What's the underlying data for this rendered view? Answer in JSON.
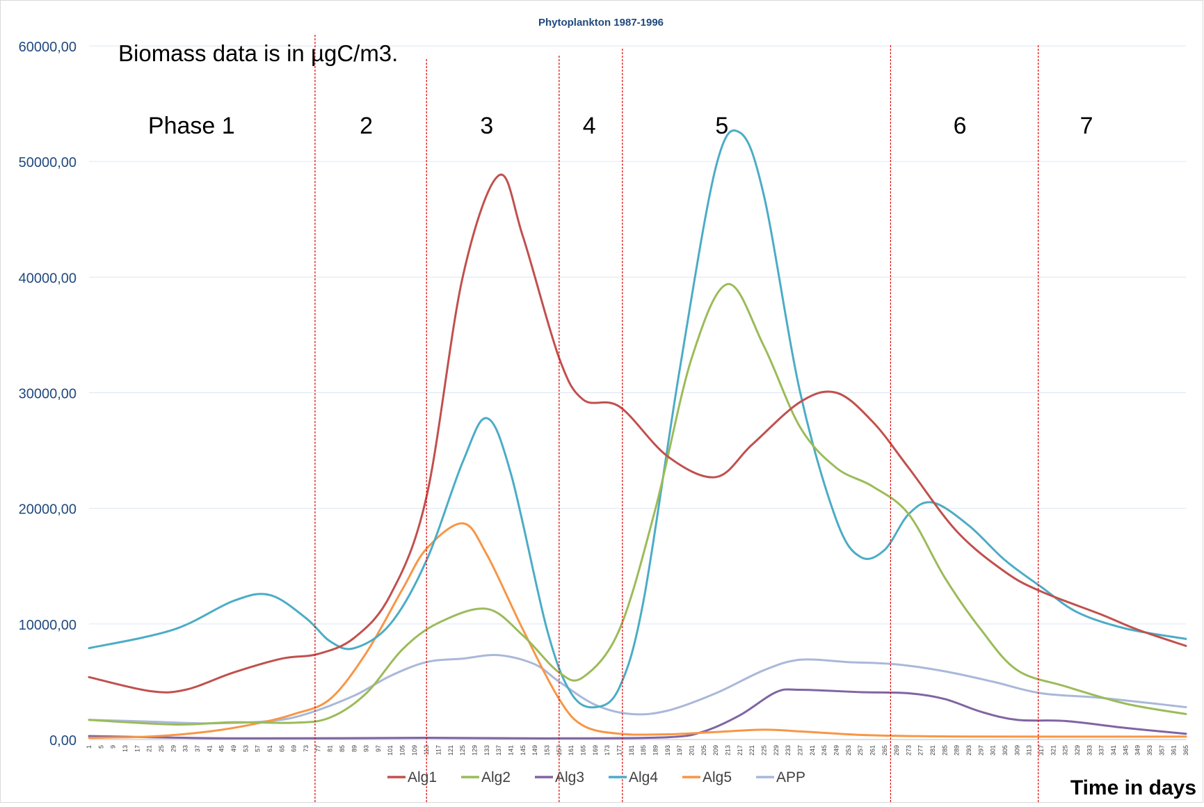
{
  "chart_data": {
    "type": "line",
    "title": "Phytoplankton 1987-1996",
    "note": "Biomass data is in µgC/m3.",
    "xlabel": "Time in days",
    "ylabel": "",
    "ylim": [
      0,
      60000
    ],
    "xlim": [
      1,
      365
    ],
    "y_ticks": [
      0,
      10000,
      20000,
      30000,
      40000,
      50000,
      60000
    ],
    "y_tick_labels": [
      "0,00",
      "10000,00",
      "20000,00",
      "30000,00",
      "40000,00",
      "50000,00",
      "60000,00"
    ],
    "x_tick_start": 1,
    "x_tick_step": 4,
    "grid": true,
    "legend_position": "bottom",
    "phase_boundaries": [
      76,
      113,
      157,
      178,
      267,
      316
    ],
    "phase_labels": [
      {
        "label": "Phase 1",
        "day": 35
      },
      {
        "label": "2",
        "day": 93
      },
      {
        "label": "3",
        "day": 133
      },
      {
        "label": "4",
        "day": 167
      },
      {
        "label": "5",
        "day": 211
      },
      {
        "label": "6",
        "day": 290
      },
      {
        "label": "7",
        "day": 332
      }
    ],
    "series": [
      {
        "name": "Alg1",
        "color": "#c0504d",
        "points": [
          [
            1,
            5400
          ],
          [
            21,
            4200
          ],
          [
            33,
            4300
          ],
          [
            49,
            5800
          ],
          [
            65,
            7000
          ],
          [
            77,
            7400
          ],
          [
            89,
            8800
          ],
          [
            101,
            12500
          ],
          [
            113,
            21000
          ],
          [
            125,
            40000
          ],
          [
            137,
            48800
          ],
          [
            145,
            43500
          ],
          [
            157,
            33000
          ],
          [
            165,
            29400
          ],
          [
            177,
            28800
          ],
          [
            193,
            24500
          ],
          [
            209,
            22700
          ],
          [
            221,
            25500
          ],
          [
            237,
            29200
          ],
          [
            249,
            30000
          ],
          [
            261,
            27500
          ],
          [
            273,
            23500
          ],
          [
            289,
            18000
          ],
          [
            305,
            14500
          ],
          [
            317,
            12800
          ],
          [
            337,
            10800
          ],
          [
            349,
            9500
          ],
          [
            365,
            8100
          ]
        ]
      },
      {
        "name": "Alg2",
        "color": "#9bbb59",
        "points": [
          [
            1,
            1700
          ],
          [
            29,
            1300
          ],
          [
            49,
            1500
          ],
          [
            69,
            1450
          ],
          [
            81,
            1900
          ],
          [
            93,
            4000
          ],
          [
            105,
            7800
          ],
          [
            117,
            10100
          ],
          [
            133,
            11300
          ],
          [
            145,
            9000
          ],
          [
            157,
            5800
          ],
          [
            165,
            5400
          ],
          [
            177,
            9500
          ],
          [
            189,
            20000
          ],
          [
            201,
            33000
          ],
          [
            213,
            39400
          ],
          [
            225,
            34000
          ],
          [
            237,
            27000
          ],
          [
            249,
            23500
          ],
          [
            261,
            21900
          ],
          [
            273,
            19500
          ],
          [
            285,
            14000
          ],
          [
            297,
            9500
          ],
          [
            309,
            6000
          ],
          [
            325,
            4600
          ],
          [
            345,
            3100
          ],
          [
            365,
            2200
          ]
        ]
      },
      {
        "name": "Alg3",
        "color": "#8064a2",
        "points": [
          [
            1,
            300
          ],
          [
            49,
            100
          ],
          [
            113,
            150
          ],
          [
            157,
            100
          ],
          [
            193,
            200
          ],
          [
            205,
            700
          ],
          [
            217,
            2100
          ],
          [
            229,
            4100
          ],
          [
            237,
            4300
          ],
          [
            257,
            4100
          ],
          [
            273,
            4000
          ],
          [
            285,
            3500
          ],
          [
            297,
            2400
          ],
          [
            309,
            1700
          ],
          [
            325,
            1600
          ],
          [
            345,
            1000
          ],
          [
            365,
            500
          ]
        ]
      },
      {
        "name": "Alg4",
        "color": "#4bacc6",
        "points": [
          [
            1,
            7900
          ],
          [
            29,
            9500
          ],
          [
            49,
            12000
          ],
          [
            61,
            12500
          ],
          [
            73,
            10500
          ],
          [
            81,
            8500
          ],
          [
            89,
            7900
          ],
          [
            101,
            10000
          ],
          [
            113,
            15500
          ],
          [
            125,
            24000
          ],
          [
            133,
            27800
          ],
          [
            141,
            23000
          ],
          [
            153,
            9500
          ],
          [
            161,
            4000
          ],
          [
            169,
            2800
          ],
          [
            177,
            4500
          ],
          [
            185,
            12000
          ],
          [
            197,
            32000
          ],
          [
            209,
            49500
          ],
          [
            217,
            52500
          ],
          [
            225,
            47000
          ],
          [
            237,
            30000
          ],
          [
            249,
            19000
          ],
          [
            257,
            15800
          ],
          [
            265,
            16400
          ],
          [
            273,
            19500
          ],
          [
            281,
            20500
          ],
          [
            293,
            18500
          ],
          [
            305,
            15500
          ],
          [
            317,
            13200
          ],
          [
            329,
            11000
          ],
          [
            345,
            9600
          ],
          [
            365,
            8700
          ]
        ]
      },
      {
        "name": "Alg5",
        "color": "#f79646",
        "points": [
          [
            1,
            150
          ],
          [
            21,
            250
          ],
          [
            41,
            700
          ],
          [
            57,
            1400
          ],
          [
            69,
            2200
          ],
          [
            81,
            3500
          ],
          [
            93,
            7500
          ],
          [
            105,
            13000
          ],
          [
            113,
            16500
          ],
          [
            125,
            18700
          ],
          [
            133,
            16000
          ],
          [
            145,
            9500
          ],
          [
            157,
            3500
          ],
          [
            165,
            1200
          ],
          [
            177,
            500
          ],
          [
            193,
            450
          ],
          [
            209,
            650
          ],
          [
            225,
            850
          ],
          [
            237,
            700
          ],
          [
            257,
            400
          ],
          [
            273,
            300
          ],
          [
            297,
            250
          ],
          [
            365,
            250
          ]
        ]
      },
      {
        "name": "APP",
        "color": "#a9b8d9",
        "points": [
          [
            1,
            1700
          ],
          [
            21,
            1550
          ],
          [
            41,
            1400
          ],
          [
            61,
            1600
          ],
          [
            73,
            2200
          ],
          [
            89,
            3800
          ],
          [
            101,
            5500
          ],
          [
            113,
            6700
          ],
          [
            125,
            7000
          ],
          [
            137,
            7300
          ],
          [
            149,
            6500
          ],
          [
            157,
            5000
          ],
          [
            169,
            3000
          ],
          [
            181,
            2200
          ],
          [
            193,
            2500
          ],
          [
            209,
            4000
          ],
          [
            225,
            6000
          ],
          [
            237,
            6900
          ],
          [
            253,
            6700
          ],
          [
            269,
            6500
          ],
          [
            285,
            5900
          ],
          [
            301,
            5000
          ],
          [
            317,
            4000
          ],
          [
            337,
            3600
          ],
          [
            365,
            2800
          ]
        ]
      }
    ]
  }
}
